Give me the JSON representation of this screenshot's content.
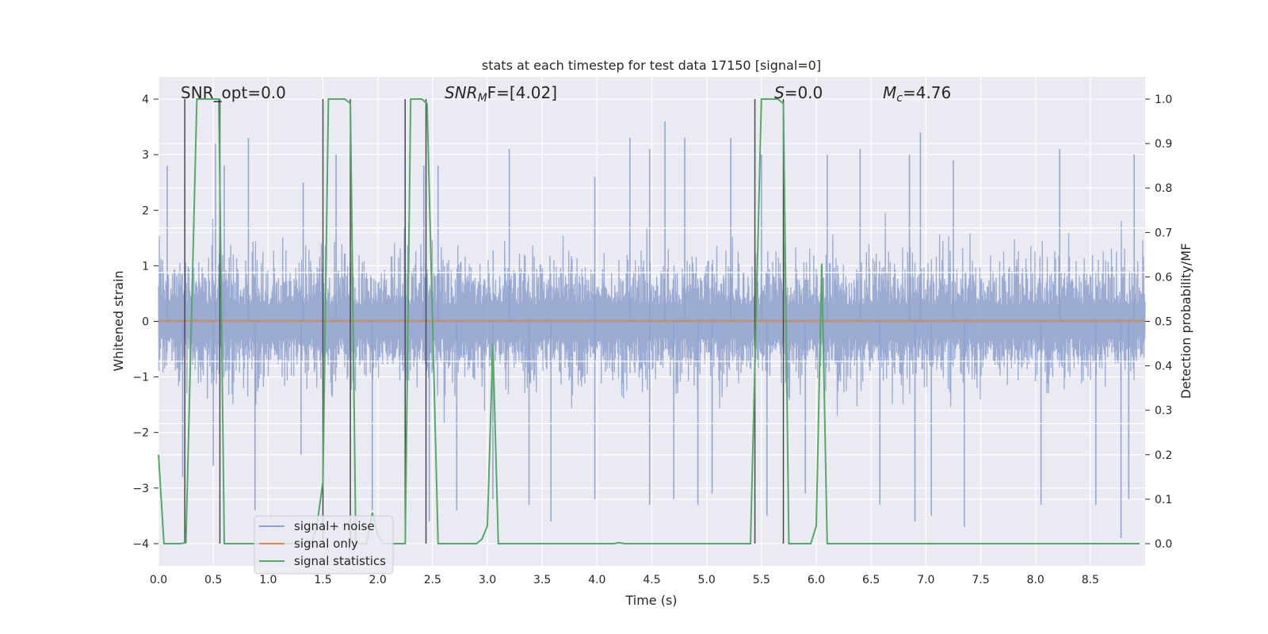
{
  "chart_data": {
    "type": "line",
    "title": "stats at each timestep for test data 17150 [signal=0]",
    "xlabel": "Time (s)",
    "ylabel": "Whitened strain",
    "ylabel_right": "Detection probability/MF",
    "xlim": [
      0.0,
      9.0
    ],
    "ylim": [
      -4.4,
      4.4
    ],
    "ylim_right": [
      -0.05,
      1.05
    ],
    "x_ticks": [
      "0.0",
      "0.5",
      "1.0",
      "1.5",
      "2.0",
      "2.5",
      "3.0",
      "3.5",
      "4.0",
      "4.5",
      "5.0",
      "5.5",
      "6.0",
      "6.5",
      "7.0",
      "7.5",
      "8.0",
      "8.5"
    ],
    "y_ticks": [
      "4",
      "3",
      "2",
      "1",
      "0",
      "−1",
      "−2",
      "−3",
      "−4"
    ],
    "y_ticks_right": [
      "1.0",
      "0.9",
      "0.8",
      "0.7",
      "0.6",
      "0.5",
      "0.4",
      "0.3",
      "0.2",
      "0.1",
      "0.0"
    ],
    "grid": true,
    "legend_position": "lower-left",
    "legend": [
      {
        "name": "signal+ noise",
        "color": "#8da0cb"
      },
      {
        "name": "signal only",
        "color": "#dd8452"
      },
      {
        "name": "signal statistics",
        "color": "#55a868"
      }
    ],
    "annotations": {
      "snr_opt": "SNR_opt=0.0",
      "snr_mf_base": "SNR",
      "snr_mf_sub": "M",
      "snr_mf_rest": "F=[4.02]",
      "s_label": "S",
      "s_value": "=0.0",
      "mc_base": "M",
      "mc_sub": "c",
      "mc_value": "=4.76"
    },
    "series": [
      {
        "name": "signal+ noise",
        "description_style": "dense whitened-noise trace",
        "envelope_typical_abs": 1.8,
        "peaks_high": [
          [
            0.08,
            2.8
          ],
          [
            0.52,
            3.2
          ],
          [
            0.6,
            2.8
          ],
          [
            0.82,
            3.3
          ],
          [
            1.32,
            2.5
          ],
          [
            1.62,
            3.0
          ],
          [
            2.42,
            2.8
          ],
          [
            2.55,
            2.8
          ],
          [
            3.2,
            3.1
          ],
          [
            3.98,
            2.6
          ],
          [
            4.3,
            3.3
          ],
          [
            4.48,
            3.1
          ],
          [
            4.62,
            3.6
          ],
          [
            4.8,
            3.3
          ],
          [
            5.22,
            3.3
          ],
          [
            5.5,
            3.0
          ],
          [
            6.1,
            3.0
          ],
          [
            6.4,
            3.1
          ],
          [
            6.85,
            3.0
          ],
          [
            6.95,
            3.4
          ],
          [
            7.25,
            2.9
          ],
          [
            8.22,
            3.1
          ],
          [
            8.9,
            3.0
          ]
        ],
        "peaks_low": [
          [
            0.22,
            -2.8
          ],
          [
            0.5,
            -2.6
          ],
          [
            0.88,
            -3.4
          ],
          [
            1.3,
            -2.4
          ],
          [
            1.95,
            -3.4
          ],
          [
            2.47,
            -3.6
          ],
          [
            2.72,
            -3.4
          ],
          [
            3.05,
            -3.2
          ],
          [
            3.38,
            -3.3
          ],
          [
            3.58,
            -3.6
          ],
          [
            3.98,
            -3.2
          ],
          [
            4.48,
            -3.3
          ],
          [
            4.7,
            -3.2
          ],
          [
            4.92,
            -3.3
          ],
          [
            5.05,
            -3.1
          ],
          [
            5.55,
            -3.5
          ],
          [
            5.9,
            -3.1
          ],
          [
            6.58,
            -3.3
          ],
          [
            6.9,
            -3.6
          ],
          [
            7.05,
            -3.5
          ],
          [
            7.35,
            -3.7
          ],
          [
            8.05,
            -3.3
          ],
          [
            8.55,
            -3.3
          ],
          [
            8.78,
            -3.9
          ],
          [
            8.85,
            -3.2
          ]
        ]
      },
      {
        "name": "signal only",
        "x": [
          0.0,
          9.0
        ],
        "y": [
          0.0,
          0.0
        ]
      },
      {
        "name": "signal statistics",
        "axis": "right",
        "x": [
          0.0,
          0.05,
          0.1,
          0.15,
          0.2,
          0.25,
          0.3,
          0.35,
          0.4,
          0.45,
          0.5,
          0.55,
          0.6,
          0.65,
          0.7,
          0.75,
          0.8,
          0.85,
          0.9,
          0.95,
          1.0,
          1.05,
          1.1,
          1.15,
          1.2,
          1.25,
          1.3,
          1.35,
          1.4,
          1.45,
          1.5,
          1.55,
          1.6,
          1.65,
          1.7,
          1.75,
          1.8,
          1.85,
          1.9,
          1.95,
          2.0,
          2.05,
          2.1,
          2.15,
          2.2,
          2.25,
          2.3,
          2.35,
          2.4,
          2.45,
          2.5,
          2.55,
          2.6,
          2.65,
          2.7,
          2.75,
          2.8,
          2.85,
          2.9,
          2.95,
          3.0,
          3.05,
          3.1,
          3.15,
          3.2,
          3.25,
          3.3,
          3.35,
          3.4,
          3.45,
          3.5,
          3.55,
          3.6,
          3.65,
          3.7,
          3.75,
          3.8,
          3.85,
          3.9,
          3.95,
          4.0,
          4.05,
          4.1,
          4.15,
          4.2,
          4.25,
          4.3,
          4.35,
          4.4,
          4.45,
          4.5,
          4.55,
          4.6,
          4.65,
          4.7,
          4.75,
          4.8,
          4.85,
          4.9,
          4.95,
          5.0,
          5.05,
          5.1,
          5.15,
          5.2,
          5.25,
          5.3,
          5.35,
          5.4,
          5.45,
          5.5,
          5.55,
          5.6,
          5.65,
          5.7,
          5.75,
          5.8,
          5.85,
          5.9,
          5.95,
          6.0,
          6.05,
          6.1,
          6.15,
          6.2,
          6.25,
          6.3,
          6.35,
          6.4,
          6.45,
          6.5,
          6.55,
          6.6,
          6.65,
          6.7,
          6.75,
          6.8,
          6.85,
          6.9,
          6.95,
          7.0,
          7.05,
          7.1,
          7.15,
          7.2,
          7.25,
          7.3,
          7.35,
          7.4,
          7.45,
          7.5,
          7.55,
          7.6,
          7.65,
          7.7,
          7.75,
          7.8,
          7.85,
          7.9,
          7.95,
          8.0,
          8.05,
          8.1,
          8.15,
          8.2,
          8.25,
          8.3,
          8.35,
          8.4,
          8.45,
          8.5,
          8.55,
          8.6,
          8.65,
          8.7,
          8.75,
          8.8,
          8.85,
          8.9,
          8.95
        ],
        "y": [
          0.2,
          0.0,
          0.0,
          0.0,
          0.0,
          0.002,
          0.5,
          1.0,
          1.0,
          1.0,
          1.0,
          1.0,
          0.0,
          0.0,
          0.0,
          0.0,
          0.0,
          0.0,
          0.0,
          0.0,
          0.0,
          0.0,
          0.0,
          0.0,
          0.0,
          0.0,
          0.0,
          0.0,
          0.0,
          0.05,
          0.14,
          1.0,
          1.0,
          1.0,
          1.0,
          0.99,
          0.0,
          0.0,
          0.0,
          0.07,
          0.02,
          0.0,
          0.0,
          0.0,
          0.0,
          0.0,
          1.0,
          1.0,
          1.0,
          0.99,
          0.5,
          0.0,
          0.0,
          0.0,
          0.0,
          0.0,
          0.0,
          0.0,
          0.0,
          0.01,
          0.04,
          0.45,
          0.0,
          0.0,
          0.0,
          0.0,
          0.0,
          0.0,
          0.0,
          0.0,
          0.0,
          0.0,
          0.0,
          0.0,
          0.0,
          0.0,
          0.0,
          0.0,
          0.0,
          0.0,
          0.0,
          0.0,
          0.0,
          0.0,
          0.002,
          0.0,
          0.0,
          0.0,
          0.0,
          0.0,
          0.0,
          0.0,
          0.0,
          0.0,
          0.0,
          0.0,
          0.0,
          0.0,
          0.0,
          0.0,
          0.0,
          0.0,
          0.0,
          0.0,
          0.0,
          0.0,
          0.0,
          0.0,
          0.0,
          0.5,
          1.0,
          1.0,
          1.0,
          1.0,
          0.99,
          0.0,
          0.0,
          0.0,
          0.0,
          0.0,
          0.04,
          0.63,
          0.0,
          0.0,
          0.0,
          0.0,
          0.0,
          0.0,
          0.0,
          0.0,
          0.0,
          0.0,
          0.0,
          0.0,
          0.0,
          0.0,
          0.0,
          0.0,
          0.0,
          0.0,
          0.0,
          0.0,
          0.0,
          0.0,
          0.0,
          0.0,
          0.0,
          0.0,
          0.0,
          0.0,
          0.0,
          0.0,
          0.0,
          0.0,
          0.0,
          0.0,
          0.0,
          0.0,
          0.0,
          0.0,
          0.0,
          0.0,
          0.0,
          0.0,
          0.0,
          0.0,
          0.0,
          0.0,
          0.0,
          0.0,
          0.0,
          0.0,
          0.0,
          0.0,
          0.0,
          0.0,
          0.0,
          0.0,
          0.0,
          0.0
        ]
      }
    ],
    "vertical_markers": [
      0.24,
      0.56,
      1.5,
      1.75,
      2.25,
      2.44,
      5.44,
      5.7
    ],
    "horizontal_reference_lines_right_axis": [
      0.71,
      0.61,
      0.41,
      0.27
    ],
    "colors": {
      "plot_background": "#eaeaf2",
      "grid": "#ffffff",
      "noise": "#8da0cb",
      "signal": "#dd8452",
      "stats": "#55a868",
      "markers": "#4a4a4a"
    }
  }
}
